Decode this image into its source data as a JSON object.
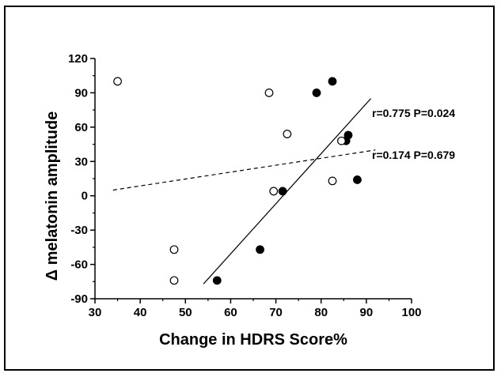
{
  "chart_data": {
    "type": "scatter",
    "title": "",
    "xlabel": "Change in HDRS Score%",
    "ylabel": "Δ melatonin amplitude",
    "xlim": [
      30,
      100
    ],
    "ylim": [
      -90,
      120
    ],
    "xticks": [
      30,
      40,
      50,
      60,
      70,
      80,
      90,
      100
    ],
    "yticks": [
      -90,
      -60,
      -30,
      0,
      30,
      60,
      90,
      120
    ],
    "grid": false,
    "legend": "none",
    "series": [
      {
        "marker": "filled-circle",
        "color": "#000000",
        "points": [
          {
            "x": 57,
            "y": -74
          },
          {
            "x": 66.5,
            "y": -47
          },
          {
            "x": 71.5,
            "y": 4
          },
          {
            "x": 79,
            "y": 90
          },
          {
            "x": 82.5,
            "y": 100
          },
          {
            "x": 85.5,
            "y": 48
          },
          {
            "x": 86,
            "y": 53
          },
          {
            "x": 88,
            "y": 14
          }
        ],
        "fit": {
          "style": "solid",
          "from": [
            54,
            -77
          ],
          "to": [
            91,
            85
          ]
        },
        "annotation": "r=0.775 P=0.024"
      },
      {
        "marker": "open-circle",
        "color": "#000000",
        "points": [
          {
            "x": 35,
            "y": 100
          },
          {
            "x": 47.5,
            "y": -47
          },
          {
            "x": 47.5,
            "y": -74
          },
          {
            "x": 68.5,
            "y": 90
          },
          {
            "x": 69.5,
            "y": 4
          },
          {
            "x": 72.5,
            "y": 54
          },
          {
            "x": 82.5,
            "y": 13
          },
          {
            "x": 84.5,
            "y": 48
          }
        ],
        "fit": {
          "style": "dashed",
          "from": [
            34,
            5
          ],
          "to": [
            92,
            40
          ]
        },
        "annotation": "r=0.174 P=0.679"
      }
    ]
  }
}
